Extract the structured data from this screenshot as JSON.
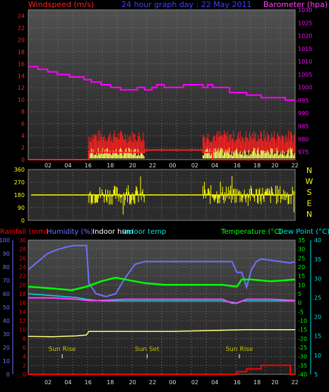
{
  "header": {
    "left_label": "Windspeed (m/s)",
    "center_label": "24 hour graph day : 22 May 2011",
    "right_label": "Barometer (hpa)"
  },
  "colors": {
    "windspeed": "#ff2020",
    "gust": "#ffff60",
    "barometer": "#ff00ff",
    "wind_dir": "#ffff00",
    "rainfall": "#ff0000",
    "humidity": "#7070ff",
    "indoor_hum": "#ff40ff",
    "indoor_temp": "#00e0e0",
    "temperature": "#00ff00",
    "dew_point": "#00e0e0",
    "bottom_yellow": "#ffff80",
    "sun_markers": "#c0c000"
  },
  "chart_data": [
    {
      "type": "line",
      "name": "wind-and-barometer",
      "y_left": {
        "label": "Windspeed (m/s)",
        "range": [
          0,
          25
        ],
        "ticks": [
          0,
          2,
          4,
          6,
          8,
          10,
          12,
          14,
          16,
          18,
          20,
          22,
          24
        ]
      },
      "y_right": {
        "label": "Barometer (hpa)",
        "range": [
          972,
          1030
        ],
        "ticks": [
          975,
          980,
          985,
          990,
          995,
          1000,
          1005,
          1010,
          1015,
          1020,
          1025,
          1030
        ]
      },
      "x_ticks": [
        "02",
        "04",
        "16",
        "18",
        "20",
        "22",
        "00",
        "02",
        "04",
        "16",
        "18",
        "20",
        "22"
      ],
      "series": [
        {
          "name": "Barometer (hpa)",
          "axis": "right",
          "x": [
            0,
            4,
            4,
            8,
            8,
            12,
            12,
            17,
            17,
            23,
            23,
            24,
            26,
            26,
            28,
            30,
            30,
            34,
            34,
            36,
            38,
            38,
            45,
            45,
            48,
            48,
            51,
            51,
            53,
            53,
            56,
            56,
            60,
            60,
            64,
            64,
            72,
            72,
            74,
            74,
            76,
            76,
            83,
            83,
            90,
            90,
            96,
            96,
            100,
            100,
            106,
            106,
            110
          ],
          "y": [
            1008,
            1008,
            1007,
            1007,
            1006,
            1006,
            1005,
            1005,
            1004,
            1004,
            1003,
            1003,
            1003,
            1002,
            1002,
            1002,
            1001,
            1001,
            1000,
            1000,
            1000,
            999,
            999,
            1000,
            1000,
            999,
            999,
            1000,
            1000,
            1001,
            1001,
            1000,
            1000,
            1000,
            1000,
            1001,
            1001,
            1000,
            1000,
            1001,
            1001,
            1000,
            1000,
            998,
            998,
            997,
            997,
            996,
            996,
            996,
            996,
            995,
            995
          ]
        },
        {
          "name": "Windspeed",
          "axis": "left",
          "x": [
            0,
            25,
            25,
            48,
            48,
            72,
            72,
            76,
            76,
            110
          ],
          "y": [
            0,
            0,
            1.2,
            1.2,
            1.6,
            1.6,
            1.2,
            1.2,
            0,
            0
          ]
        }
      ]
    },
    {
      "type": "scatter",
      "name": "wind-direction",
      "y_right_labels": [
        "N",
        "W",
        "S",
        "E",
        "N"
      ],
      "y_ticks": [
        0,
        90,
        180,
        270,
        360
      ],
      "range": [
        0,
        360
      ],
      "mean_direction": 180
    },
    {
      "type": "line",
      "name": "rain-humidity-temperature",
      "legend": [
        {
          "label": "Rainfall (mm)",
          "color": "#ff2020"
        },
        {
          "label": "Humidity (%)",
          "color": "#7070ff"
        },
        {
          "label": "Indoor hum",
          "color": "#ffffff"
        },
        {
          "label": "Indoor temp",
          "color": "#00e0e0"
        },
        {
          "label": "Temperature (°C)",
          "color": "#00ff00"
        },
        {
          "label": "Dew Point (°C)",
          "color": "#00e0e0"
        }
      ],
      "y_humidity": {
        "range": [
          0,
          100
        ],
        "ticks": [
          0,
          10,
          20,
          30,
          40,
          50,
          60,
          70,
          80,
          90,
          100
        ]
      },
      "y_rain": {
        "range": [
          0,
          30
        ],
        "ticks": [
          0,
          2,
          4,
          6,
          8,
          10,
          12,
          14,
          16,
          18,
          20,
          22,
          24,
          26,
          28,
          30
        ]
      },
      "y_temp": {
        "range": [
          -40,
          35
        ],
        "ticks": [
          -40,
          -35,
          -30,
          -25,
          -20,
          -15,
          -10,
          -5,
          0,
          5,
          10,
          15,
          20,
          25,
          30,
          35
        ]
      },
      "y_dew": {
        "range": [
          5,
          40
        ],
        "ticks": [
          5,
          10,
          15,
          20,
          25,
          30,
          35,
          40
        ]
      },
      "annotations": [
        "Sun Rise",
        "Sun Set",
        "Sun Rise"
      ],
      "humidity": {
        "x": [
          0,
          4,
          8,
          12,
          16,
          19,
          22,
          24,
          25,
          28,
          32,
          36,
          40,
          44,
          48,
          56,
          64,
          72,
          80,
          84,
          86,
          88,
          90,
          92,
          94,
          96,
          100,
          104,
          108,
          110
        ],
        "y": [
          78,
          84,
          90,
          93,
          95,
          96,
          96,
          96,
          68,
          60,
          58,
          60,
          72,
          82,
          84,
          84,
          84,
          84,
          84,
          84,
          76,
          76,
          65,
          78,
          84,
          86,
          85,
          84,
          83,
          84
        ]
      },
      "indoor_hum": {
        "x": [
          0,
          10,
          20,
          25,
          30,
          40,
          50,
          60,
          70,
          80,
          84,
          86,
          90,
          100,
          110
        ],
        "y": [
          57,
          57,
          56,
          55,
          55,
          56,
          56,
          56,
          56,
          56,
          53,
          53,
          56,
          56,
          55
        ]
      },
      "temperature": {
        "x": [
          0,
          10,
          18,
          24,
          30,
          36,
          40,
          48,
          56,
          64,
          72,
          80,
          86,
          88,
          92,
          100,
          110
        ],
        "y": [
          9,
          8,
          7,
          9,
          12,
          14,
          13,
          11,
          10,
          10,
          10,
          10,
          9,
          13,
          13,
          12,
          13
        ]
      },
      "dew_point": {
        "x": [
          0,
          10,
          20,
          24,
          30,
          40,
          50,
          60,
          70,
          80,
          86,
          88,
          92,
          100,
          110
        ],
        "y": [
          5,
          4,
          3,
          2,
          1,
          1,
          1,
          1,
          1,
          1,
          0,
          1,
          1,
          1,
          1
        ]
      },
      "rainfall": {
        "x": [
          0,
          86,
          86,
          90,
          90,
          96,
          96,
          108,
          108,
          110
        ],
        "y": [
          0,
          0,
          0.6,
          0.6,
          1.2,
          1.2,
          2,
          2,
          0,
          0
        ]
      },
      "bottom_line": {
        "x": [
          0,
          10,
          20,
          24,
          25,
          60,
          90,
          110
        ],
        "y": [
          8.5,
          8.4,
          8.6,
          8.8,
          9.6,
          9.6,
          10,
          10
        ]
      }
    }
  ]
}
